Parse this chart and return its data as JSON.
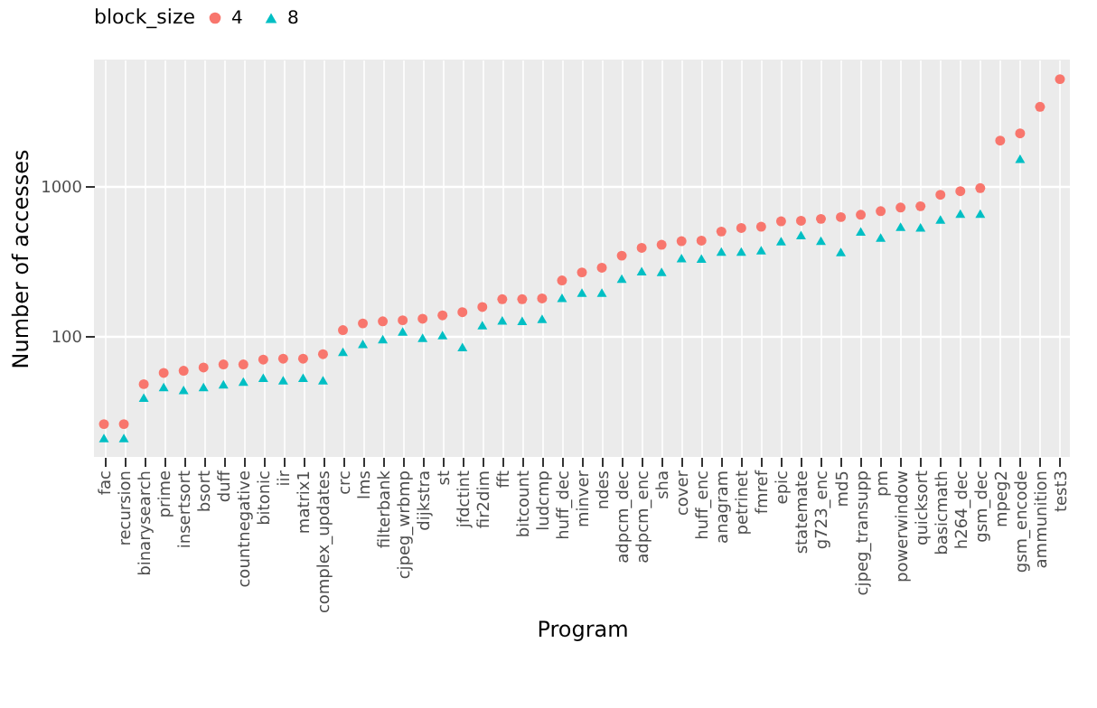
{
  "chart_data": {
    "type": "scatter",
    "xlabel": "Program",
    "ylabel": "Number of accesses",
    "legend_title": "block_size",
    "legend": "top",
    "grid": true,
    "log": "y",
    "categories": [
      "fac",
      "recursion",
      "binarysearch",
      "prime",
      "insertsort",
      "bsort",
      "duff",
      "countnegative",
      "bitonic",
      "iir",
      "matrix1",
      "complex_updates",
      "crc",
      "lms",
      "filterbank",
      "cjpeg_wrbmp",
      "dijkstra",
      "st",
      "jfdctint",
      "fir2dim",
      "fft",
      "bitcount",
      "ludcmp",
      "huff_dec",
      "minver",
      "ndes",
      "adpcm_dec",
      "adpcm_enc",
      "sha",
      "cover",
      "huff_enc",
      "anagram",
      "petrinet",
      "fmref",
      "epic",
      "statemate",
      "g723_enc",
      "md5",
      "cjpeg_transupp",
      "pm",
      "powerwindow",
      "quicksort",
      "basicmath",
      "h264_dec",
      "gsm_dec",
      "mpeg2",
      "gsm_encode",
      "ammunition",
      "test3"
    ],
    "ylim": [
      15.7,
      7000
    ],
    "yticks": [
      100,
      1000
    ],
    "series": [
      {
        "name": "4",
        "color": "#f8766d",
        "marker": "circle",
        "values": [
          26,
          26,
          48,
          57,
          59,
          62,
          65,
          65,
          70,
          71,
          71,
          76,
          110,
          122,
          126,
          128,
          131,
          138,
          145,
          157,
          177,
          177,
          179,
          236,
          267,
          287,
          345,
          389,
          408,
          431,
          435,
          500,
          528,
          538,
          585,
          590,
          607,
          624,
          647,
          684,
          723,
          737,
          878,
          929,
          973,
          2018,
          2256,
          3388,
          5188
        ]
      },
      {
        "name": "8",
        "color": "#00bfc4",
        "marker": "triangle",
        "values": [
          21,
          21,
          39,
          46,
          44,
          46,
          48,
          50,
          53,
          51,
          53,
          51,
          79,
          89,
          96,
          108,
          98,
          102,
          85,
          119,
          128,
          127,
          131,
          181,
          196,
          196,
          243,
          272,
          269,
          333,
          330,
          368,
          368,
          375,
          431,
          473,
          435,
          365,
          500,
          456,
          538,
          533,
          601,
          659,
          659,
          null,
          1531,
          null,
          null
        ]
      }
    ]
  }
}
